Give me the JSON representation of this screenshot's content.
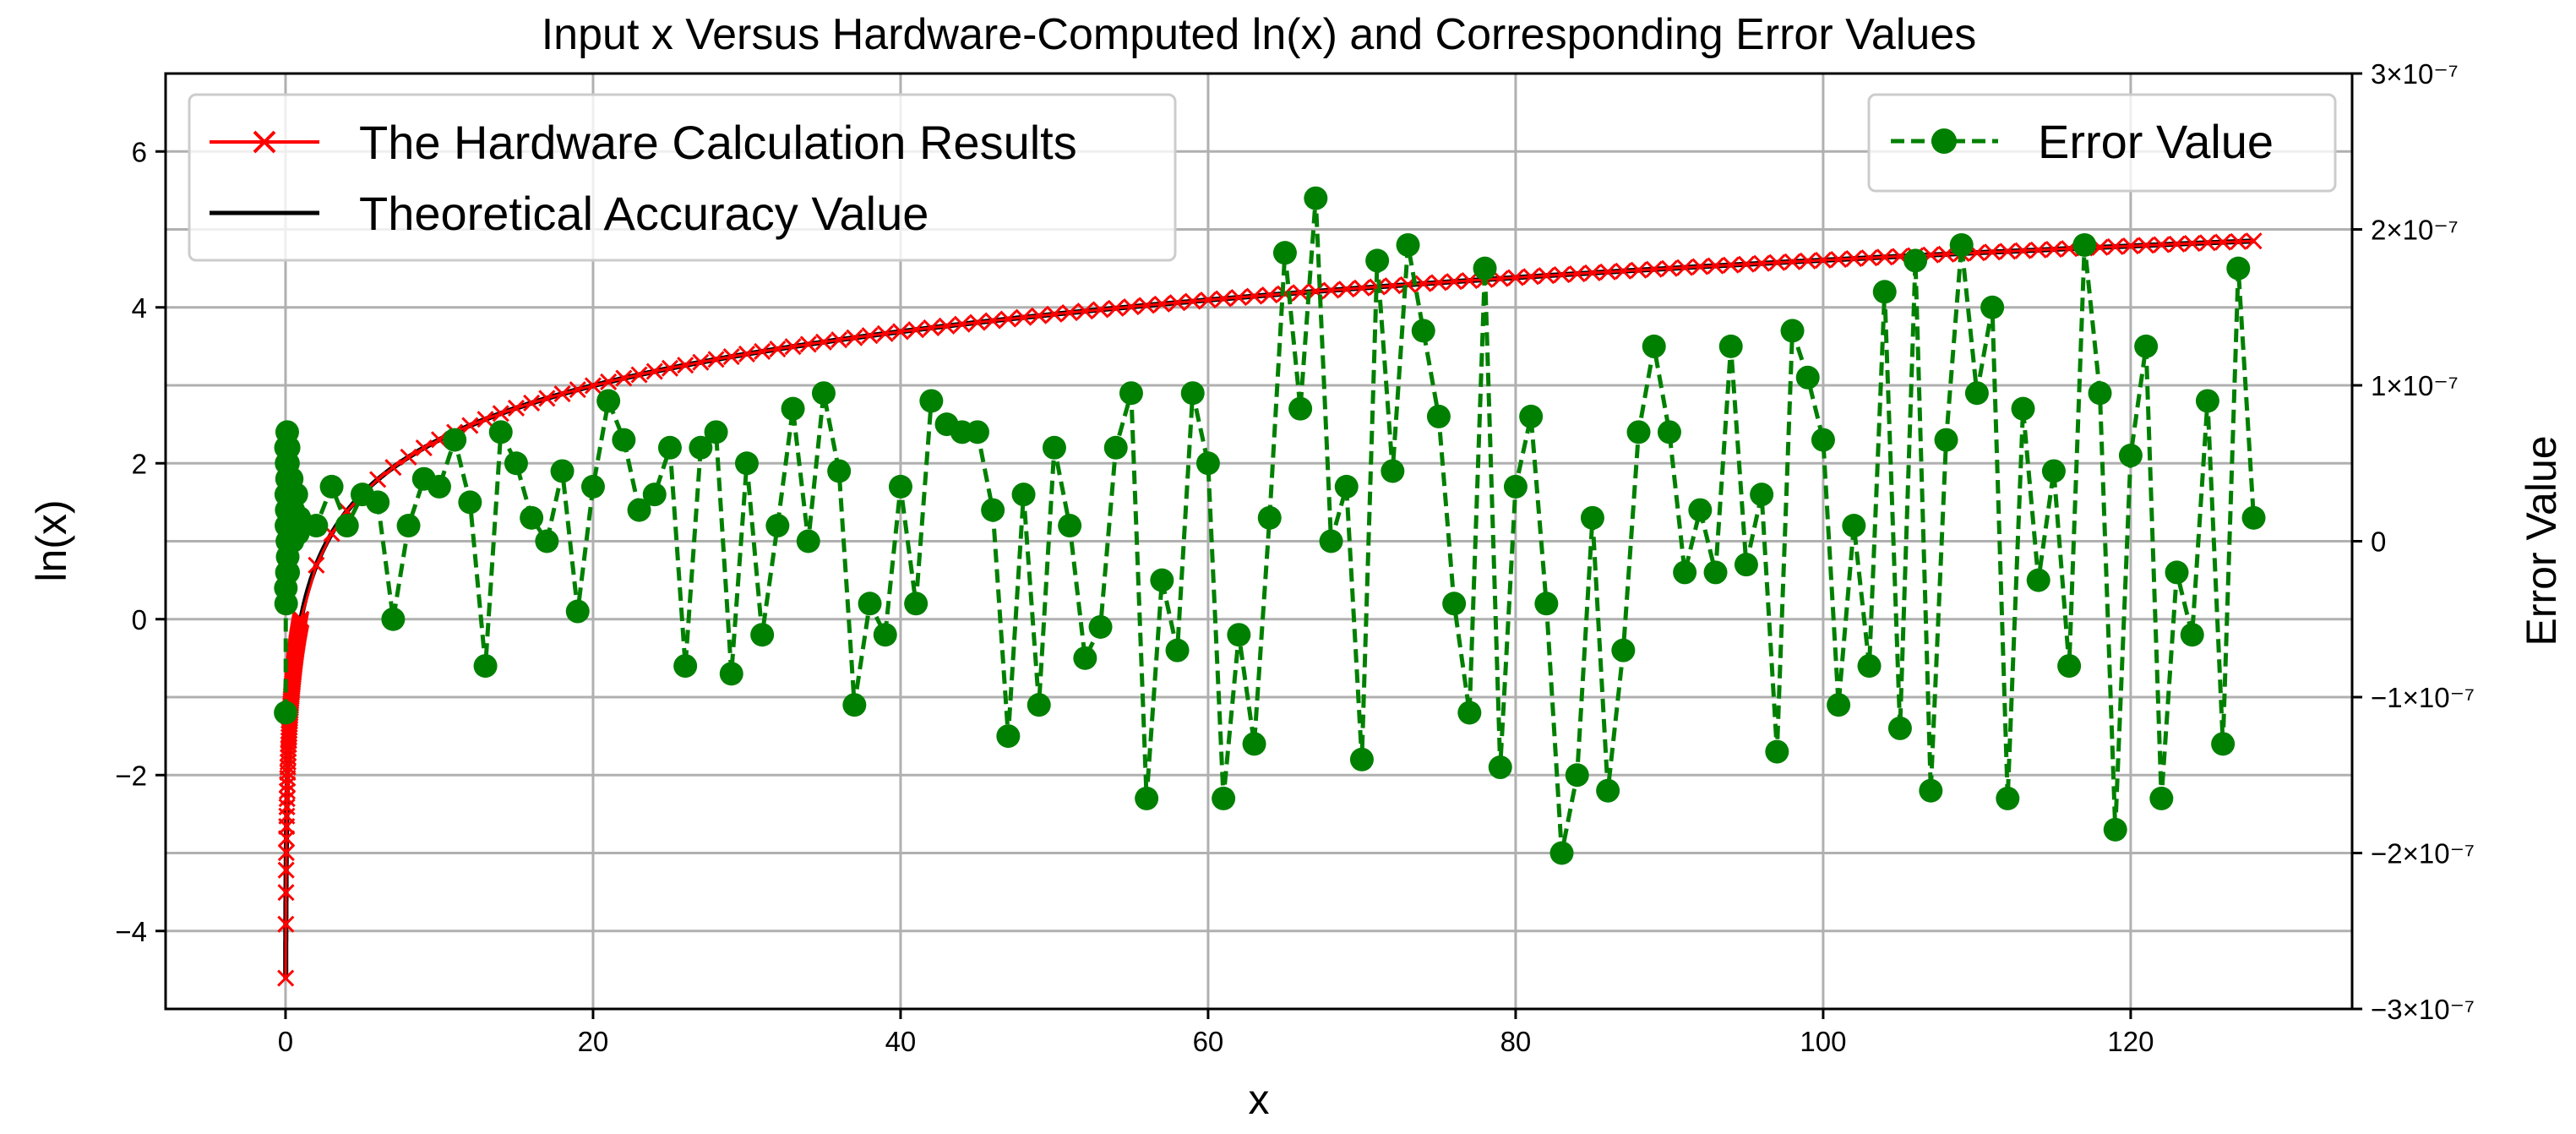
{
  "chart_data": {
    "type": "line",
    "title": "Input x Versus Hardware-Computed ln(x) and Corresponding Error Values",
    "xlabel": "x",
    "ylabel": "ln(x)",
    "y2label": "Error Value",
    "xlim": [
      -7.8,
      134.4
    ],
    "ylim": [
      -5.0,
      7.0
    ],
    "y2lim": [
      -3e-07,
      3e-07
    ],
    "grid": true,
    "x_ticks": [
      0,
      20,
      40,
      60,
      80,
      100,
      120
    ],
    "y_ticks": [
      -4,
      -2,
      0,
      2,
      4,
      6
    ],
    "y2_ticks": [
      -3e-07,
      -2e-07,
      -1e-07,
      0,
      1e-07,
      2e-07,
      3e-07
    ],
    "x_tick_labels": [
      "0",
      "20",
      "40",
      "60",
      "80",
      "100",
      "120"
    ],
    "y_tick_labels": [
      "−4",
      "−2",
      "0",
      "2",
      "4",
      "6"
    ],
    "y2_tick_labels": [
      "−3×10⁻⁷",
      "−2×10⁻⁷",
      "−1×10⁻⁷",
      "0",
      "1×10⁻⁷",
      "2×10⁻⁷",
      "3×10⁻⁷"
    ],
    "legend_left": {
      "placement": "top-left",
      "entries": [
        "The Hardware Calculation Results",
        "Theoretical Accuracy Value"
      ]
    },
    "legend_right": {
      "placement": "top-right",
      "entries": [
        "Error Value"
      ]
    },
    "series": [
      {
        "name": "The Hardware Calculation Results",
        "axis": "left",
        "color": "#ff0000",
        "marker": "x",
        "style": "solid",
        "function": "ln",
        "x_fine": [
          0.01,
          1.0,
          0.01
        ],
        "x_int": [
          1,
          128,
          1
        ]
      },
      {
        "name": "Theoretical Accuracy Value",
        "axis": "left",
        "color": "#000000",
        "marker": "none",
        "style": "solid",
        "function": "ln",
        "x_range": [
          0.01,
          128
        ]
      },
      {
        "name": "Error Value",
        "axis": "right",
        "color": "#008000",
        "marker": "circle",
        "style": "dashed",
        "x": [
          0.01,
          0.02,
          0.03,
          0.04,
          0.05,
          0.06,
          0.07,
          0.08,
          0.09,
          0.1,
          0.11,
          0.12,
          0.13,
          0.14,
          0.15,
          0.16,
          0.17,
          0.18,
          0.2,
          0.25,
          0.3,
          0.35,
          0.4,
          0.45,
          0.5,
          0.6,
          0.7,
          0.8,
          0.9,
          1,
          2,
          3,
          4,
          5,
          6,
          7,
          8,
          9,
          10,
          11,
          12,
          13,
          14,
          15,
          16,
          17,
          18,
          19,
          20,
          21,
          22,
          23,
          24,
          25,
          26,
          27,
          28,
          29,
          30,
          31,
          32,
          33,
          34,
          35,
          36,
          37,
          38,
          39,
          40,
          41,
          42,
          43,
          44,
          45,
          46,
          47,
          48,
          49,
          50,
          51,
          52,
          53,
          54,
          55,
          56,
          57,
          58,
          59,
          60,
          61,
          62,
          63,
          64,
          65,
          66,
          67,
          68,
          69,
          70,
          71,
          72,
          73,
          74,
          75,
          76,
          77,
          78,
          79,
          80,
          81,
          82,
          83,
          84,
          85,
          86,
          87,
          88,
          89,
          90,
          91,
          92,
          93,
          94,
          95,
          96,
          97,
          98,
          99,
          100,
          101,
          102,
          103,
          104,
          105,
          106,
          107,
          108,
          109,
          110,
          111,
          112,
          113,
          114,
          115,
          116,
          117,
          118,
          119,
          120,
          121,
          122,
          123,
          124,
          125,
          126,
          127,
          128
        ],
        "y": [
          -1.1e-07,
          -3e-08,
          6e-08,
          -4e-08,
          3e-08,
          1e-08,
          5e-08,
          2e-08,
          -2e-08,
          4e-08,
          7e-08,
          0.0,
          3e-08,
          -1e-08,
          2e-08,
          5e-08,
          -2e-08,
          1e-08,
          6e-08,
          2e-08,
          3e-08,
          1e-08,
          4e-08,
          0.0,
          2e-08,
          1e-08,
          3e-08,
          5e-09,
          1.5e-08,
          1e-08,
          1e-08,
          3.5e-08,
          1e-08,
          3e-08,
          2.5e-08,
          -5e-08,
          1e-08,
          4e-08,
          3.5e-08,
          6.5e-08,
          2.5e-08,
          -8e-08,
          7e-08,
          5e-08,
          1.5e-08,
          0.0,
          4.5e-08,
          -4.5e-08,
          3.5e-08,
          9e-08,
          6.5e-08,
          2e-08,
          3e-08,
          6e-08,
          -8e-08,
          6e-08,
          7e-08,
          -8.5e-08,
          5e-08,
          -6e-08,
          1e-08,
          8.5e-08,
          0.0,
          9.5e-08,
          4.5e-08,
          -1.05e-07,
          -4e-08,
          -6e-08,
          3.5e-08,
          -4e-08,
          9e-08,
          7.5e-08,
          7e-08,
          7e-08,
          2e-08,
          -1.25e-07,
          3e-08,
          -1.05e-07,
          6e-08,
          1e-08,
          -7.5e-08,
          -5.5e-08,
          6e-08,
          9.5e-08,
          -1.65e-07,
          -2.5e-08,
          -7e-08,
          9.5e-08,
          5e-08,
          -1.65e-07,
          -6e-08,
          -1.3e-07,
          1.5e-08,
          1.85e-07,
          8.5e-08,
          2.2e-07,
          0.0,
          3.5e-08,
          -1.4e-07,
          1.8e-07,
          4.5e-08,
          1.9e-07,
          1.35e-07,
          8e-08,
          -4e-08,
          -1.1e-07,
          1.75e-07,
          -1.45e-07,
          3.5e-08,
          8e-08,
          -4e-08,
          -2e-07,
          -1.5e-07,
          1.5e-08,
          -1.6e-07,
          -7e-08,
          7e-08,
          1.25e-07,
          7e-08,
          -2e-08,
          2e-08,
          -2e-08,
          1.25e-07,
          -1.5e-08,
          3e-08,
          -1.35e-07,
          1.35e-07,
          1.05e-07,
          6.5e-08,
          -1.05e-07,
          1e-08,
          -8e-08,
          1.6e-07,
          -1.2e-07,
          1.8e-07,
          -1.6e-07,
          6.5e-08,
          1.9e-07,
          9.5e-08,
          1.5e-07,
          -1.65e-07,
          8.5e-08,
          -2.5e-08,
          4.5e-08,
          -8e-08,
          1.9e-07,
          9.5e-08,
          -1.85e-07,
          5.5e-08,
          1.25e-07,
          -1.65e-07,
          -2e-08,
          -6e-08,
          9e-08,
          -1.3e-07,
          1.75e-07,
          1.5e-08
        ]
      }
    ]
  }
}
